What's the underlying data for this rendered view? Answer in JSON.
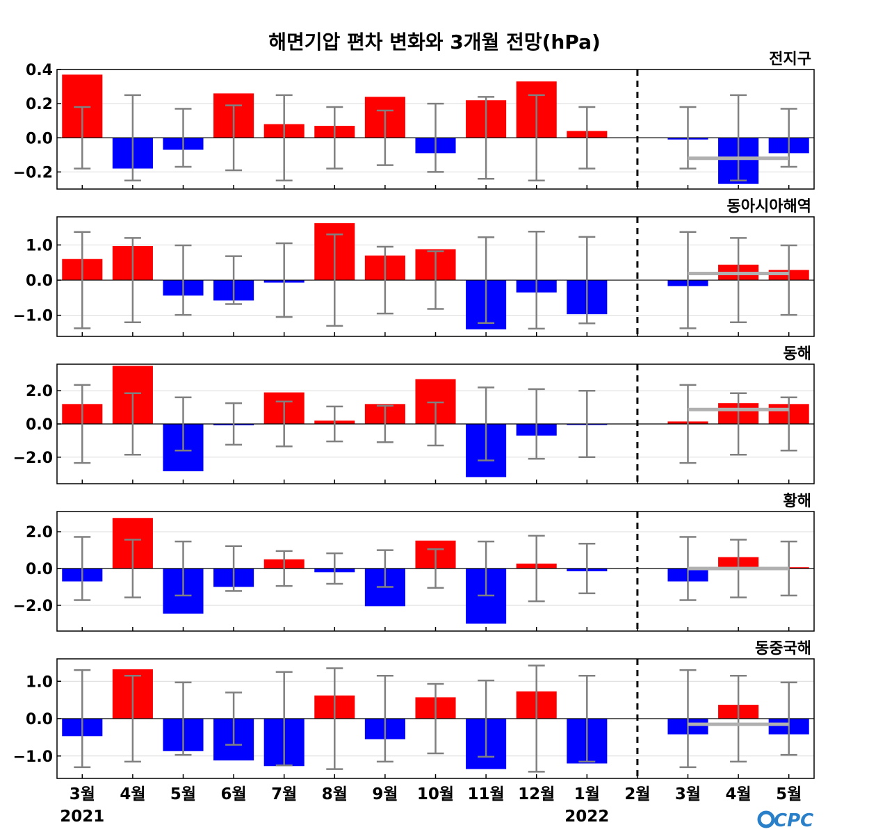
{
  "chart_data": {
    "type": "bar",
    "title": "해면기압 편차 변화와 3개월 전망(hPa)",
    "months": [
      "3월",
      "4월",
      "5월",
      "6월",
      "7월",
      "8월",
      "9월",
      "10월",
      "11월",
      "12월",
      "1월",
      "2월",
      "3월",
      "4월",
      "5월"
    ],
    "year_labels": [
      {
        "index": 0,
        "text": "2021"
      },
      {
        "index": 10,
        "text": "2022"
      }
    ],
    "forecast_divider_after_index": 11,
    "colors": {
      "positive": "#ff0000",
      "negative": "#0000ff",
      "error_bar": "#808080",
      "forecast_line": "#b0b0b0"
    },
    "logo_text": "CPC",
    "panels": [
      {
        "name": "전지구",
        "ylim": [
          -0.3,
          0.4
        ],
        "ticks": [
          -0.2,
          0.0,
          0.2,
          0.4
        ],
        "tick_labels": [
          "−0.2",
          "0.0",
          "0.2",
          "0.4"
        ],
        "values": [
          0.37,
          -0.18,
          -0.07,
          0.26,
          0.08,
          0.07,
          0.24,
          -0.09,
          0.22,
          0.33,
          0.04,
          0.0,
          -0.01,
          -0.27,
          -0.09
        ],
        "error_bars": [
          0.18,
          0.25,
          0.17,
          0.19,
          0.25,
          0.18,
          0.16,
          0.2,
          0.24,
          0.25,
          0.18,
          0.0,
          0.18,
          0.25,
          0.17
        ],
        "forecast_mean": -0.12
      },
      {
        "name": "동아시아해역",
        "ylim": [
          -1.6,
          1.8
        ],
        "ticks": [
          -1.0,
          0.0,
          1.0
        ],
        "tick_labels": [
          "−1.0",
          "0.0",
          "1.0"
        ],
        "values": [
          0.6,
          0.97,
          -0.44,
          -0.58,
          -0.07,
          1.62,
          0.7,
          0.88,
          -1.4,
          -0.35,
          -0.97,
          0.0,
          -0.17,
          0.44,
          0.29
        ],
        "error_bars": [
          1.37,
          1.2,
          0.99,
          0.68,
          1.05,
          1.3,
          0.95,
          0.82,
          1.22,
          1.38,
          1.23,
          0.0,
          1.37,
          1.2,
          0.99
        ],
        "forecast_mean": 0.19
      },
      {
        "name": "동해",
        "ylim": [
          -3.6,
          3.6
        ],
        "ticks": [
          -2.0,
          0.0,
          2.0
        ],
        "tick_labels": [
          "−2.0",
          "0.0",
          "2.0"
        ],
        "values": [
          1.2,
          3.5,
          -2.85,
          -0.08,
          1.9,
          0.2,
          1.2,
          2.7,
          -3.2,
          -0.7,
          -0.05,
          0.0,
          0.15,
          1.25,
          1.2
        ],
        "error_bars": [
          2.35,
          1.85,
          1.6,
          1.25,
          1.35,
          1.05,
          1.1,
          1.3,
          2.2,
          2.1,
          2.0,
          0.0,
          2.35,
          1.85,
          1.6
        ],
        "forecast_mean": 0.87
      },
      {
        "name": "황해",
        "ylim": [
          -3.4,
          3.1
        ],
        "ticks": [
          -2.0,
          0.0,
          2.0
        ],
        "tick_labels": [
          "−2.0",
          "0.0",
          "2.0"
        ],
        "values": [
          -0.7,
          2.75,
          -2.45,
          -1.0,
          0.5,
          -0.2,
          -2.05,
          1.52,
          -3.0,
          0.27,
          -0.15,
          0.0,
          -0.7,
          0.62,
          0.07
        ],
        "error_bars": [
          1.72,
          1.57,
          1.47,
          1.22,
          0.95,
          0.83,
          1.0,
          1.05,
          1.47,
          1.78,
          1.35,
          0.0,
          1.72,
          1.57,
          1.47
        ],
        "forecast_mean": 0.0
      },
      {
        "name": "동중국해",
        "ylim": [
          -1.6,
          1.6
        ],
        "ticks": [
          -1.0,
          0.0,
          1.0
        ],
        "tick_labels": [
          "−1.0",
          "0.0",
          "1.0"
        ],
        "values": [
          -0.47,
          1.32,
          -0.87,
          -1.12,
          -1.27,
          0.62,
          -0.55,
          0.57,
          -1.35,
          0.73,
          -1.2,
          0.0,
          -0.42,
          0.37,
          -0.42
        ],
        "error_bars": [
          1.3,
          1.15,
          0.97,
          0.7,
          1.25,
          1.35,
          1.15,
          0.93,
          1.02,
          1.42,
          1.15,
          0.0,
          1.3,
          1.15,
          0.97
        ],
        "forecast_mean": -0.15
      }
    ]
  }
}
